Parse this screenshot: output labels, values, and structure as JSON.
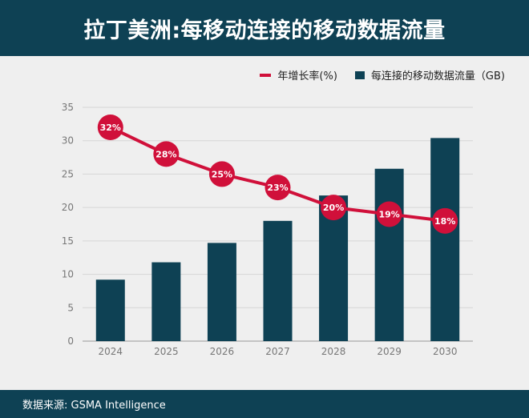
{
  "title": "拉丁美洲:每移动连接的移动数据流量",
  "source": "数据来源: GSMA Intelligence",
  "colors": {
    "bar": "#0e4154",
    "line": "#d0103a",
    "header": "#0e4154"
  },
  "chart_data": {
    "type": "bar",
    "categories": [
      "2024",
      "2025",
      "2026",
      "2027",
      "2028",
      "2029",
      "2030"
    ],
    "series": [
      {
        "name": "每连接的移动数据流量（GB)",
        "type": "bar",
        "values": [
          9.2,
          11.8,
          14.7,
          18.0,
          21.8,
          25.8,
          30.4
        ]
      },
      {
        "name": "年增长率(%)",
        "type": "line",
        "values": [
          32,
          28,
          25,
          23,
          20,
          19,
          18
        ],
        "labels": [
          "32%",
          "28%",
          "25%",
          "23%",
          "20%",
          "19%",
          "18%"
        ]
      }
    ],
    "y_ticks": [
      "0",
      "5",
      "10",
      "15",
      "20",
      "25",
      "30",
      "35"
    ],
    "ylim": [
      0,
      35
    ],
    "grid": true,
    "legend": "top-right"
  }
}
